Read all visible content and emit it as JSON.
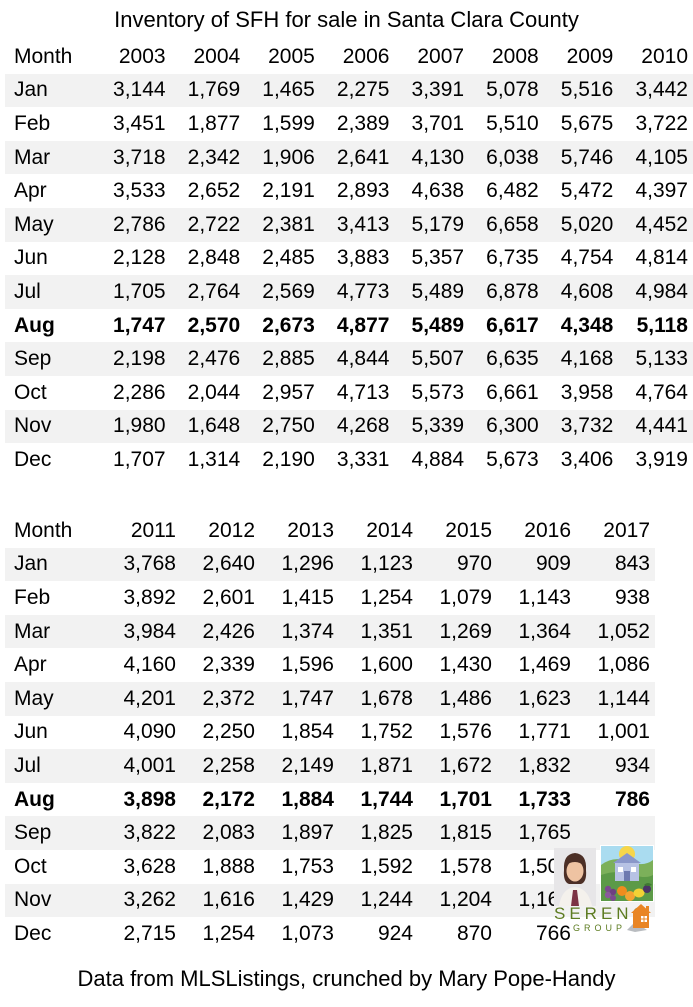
{
  "title": "Inventory of SFH for sale in Santa Clara County",
  "footer": "Data from MLSListings, crunched by Mary Pope-Handy",
  "colors": {
    "stripe": "#f2f2f2",
    "text": "#000000",
    "brand_green": "#5d7c21",
    "house_orange": "#e98524"
  },
  "logo": {
    "brand": "SERENO",
    "sub": "GROUP",
    "photo_icon": "agent-photo",
    "illustration_icon": "village-illustration",
    "house_icon": "house-icon"
  },
  "chart_data": [
    {
      "type": "table",
      "title": "Inventory of SFH for sale in Santa Clara County (2003-2010)",
      "columns": [
        "Month",
        "2003",
        "2004",
        "2005",
        "2006",
        "2007",
        "2008",
        "2009",
        "2010"
      ],
      "bold_row": "Aug",
      "rows": [
        {
          "month": "Jan",
          "bold": false,
          "values": [
            "3,144",
            "1,769",
            "1,465",
            "2,275",
            "3,391",
            "5,078",
            "5,516",
            "3,442"
          ]
        },
        {
          "month": "Feb",
          "bold": false,
          "values": [
            "3,451",
            "1,877",
            "1,599",
            "2,389",
            "3,701",
            "5,510",
            "5,675",
            "3,722"
          ]
        },
        {
          "month": "Mar",
          "bold": false,
          "values": [
            "3,718",
            "2,342",
            "1,906",
            "2,641",
            "4,130",
            "6,038",
            "5,746",
            "4,105"
          ]
        },
        {
          "month": "Apr",
          "bold": false,
          "values": [
            "3,533",
            "2,652",
            "2,191",
            "2,893",
            "4,638",
            "6,482",
            "5,472",
            "4,397"
          ]
        },
        {
          "month": "May",
          "bold": false,
          "values": [
            "2,786",
            "2,722",
            "2,381",
            "3,413",
            "5,179",
            "6,658",
            "5,020",
            "4,452"
          ]
        },
        {
          "month": "Jun",
          "bold": false,
          "values": [
            "2,128",
            "2,848",
            "2,485",
            "3,883",
            "5,357",
            "6,735",
            "4,754",
            "4,814"
          ]
        },
        {
          "month": "Jul",
          "bold": false,
          "values": [
            "1,705",
            "2,764",
            "2,569",
            "4,773",
            "5,489",
            "6,878",
            "4,608",
            "4,984"
          ]
        },
        {
          "month": "Aug",
          "bold": true,
          "values": [
            "1,747",
            "2,570",
            "2,673",
            "4,877",
            "5,489",
            "6,617",
            "4,348",
            "5,118"
          ]
        },
        {
          "month": "Sep",
          "bold": false,
          "values": [
            "2,198",
            "2,476",
            "2,885",
            "4,844",
            "5,507",
            "6,635",
            "4,168",
            "5,133"
          ]
        },
        {
          "month": "Oct",
          "bold": false,
          "values": [
            "2,286",
            "2,044",
            "2,957",
            "4,713",
            "5,573",
            "6,661",
            "3,958",
            "4,764"
          ]
        },
        {
          "month": "Nov",
          "bold": false,
          "values": [
            "1,980",
            "1,648",
            "2,750",
            "4,268",
            "5,339",
            "6,300",
            "3,732",
            "4,441"
          ]
        },
        {
          "month": "Dec",
          "bold": false,
          "values": [
            "1,707",
            "1,314",
            "2,190",
            "3,331",
            "4,884",
            "5,673",
            "3,406",
            "3,919"
          ]
        }
      ]
    },
    {
      "type": "table",
      "title": "Inventory of SFH for sale in Santa Clara County (2011-2017)",
      "columns": [
        "Month",
        "2011",
        "2012",
        "2013",
        "2014",
        "2015",
        "2016",
        "2017"
      ],
      "bold_row": "Aug",
      "rows": [
        {
          "month": "Jan",
          "bold": false,
          "values": [
            "3,768",
            "2,640",
            "1,296",
            "1,123",
            "970",
            "909",
            "843"
          ]
        },
        {
          "month": "Feb",
          "bold": false,
          "values": [
            "3,892",
            "2,601",
            "1,415",
            "1,254",
            "1,079",
            "1,143",
            "938"
          ]
        },
        {
          "month": "Mar",
          "bold": false,
          "values": [
            "3,984",
            "2,426",
            "1,374",
            "1,351",
            "1,269",
            "1,364",
            "1,052"
          ]
        },
        {
          "month": "Apr",
          "bold": false,
          "values": [
            "4,160",
            "2,339",
            "1,596",
            "1,600",
            "1,430",
            "1,469",
            "1,086"
          ]
        },
        {
          "month": "May",
          "bold": false,
          "values": [
            "4,201",
            "2,372",
            "1,747",
            "1,678",
            "1,486",
            "1,623",
            "1,144"
          ]
        },
        {
          "month": "Jun",
          "bold": false,
          "values": [
            "4,090",
            "2,250",
            "1,854",
            "1,752",
            "1,576",
            "1,771",
            "1,001"
          ]
        },
        {
          "month": "Jul",
          "bold": false,
          "values": [
            "4,001",
            "2,258",
            "2,149",
            "1,871",
            "1,672",
            "1,832",
            "934"
          ]
        },
        {
          "month": "Aug",
          "bold": true,
          "values": [
            "3,898",
            "2,172",
            "1,884",
            "1,744",
            "1,701",
            "1,733",
            "786"
          ]
        },
        {
          "month": "Sep",
          "bold": false,
          "values": [
            "3,822",
            "2,083",
            "1,897",
            "1,825",
            "1,815",
            "1,765"
          ]
        },
        {
          "month": "Oct",
          "bold": false,
          "values": [
            "3,628",
            "1,888",
            "1,753",
            "1,592",
            "1,578",
            "1,500"
          ]
        },
        {
          "month": "Nov",
          "bold": false,
          "values": [
            "3,262",
            "1,616",
            "1,429",
            "1,244",
            "1,204",
            "1,161"
          ]
        },
        {
          "month": "Dec",
          "bold": false,
          "values": [
            "2,715",
            "1,254",
            "1,073",
            "924",
            "870",
            "766"
          ]
        }
      ]
    }
  ]
}
